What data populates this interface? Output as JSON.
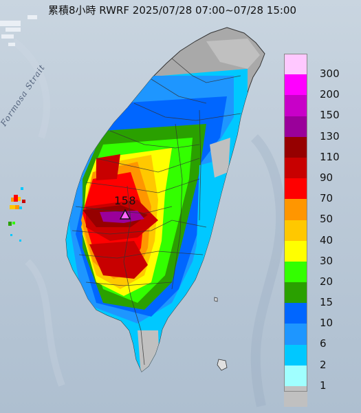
{
  "map": {
    "title": "累積8小時 RWRF 2025/07/28 07:00~07/28 15:00",
    "sea_label": "Formosa Strait",
    "max_value": "158",
    "land_color": "#a9a9a9",
    "ocean_color": "#bccad8"
  },
  "legend": {
    "items": [
      {
        "label": "300",
        "color": "#ffc8ff"
      },
      {
        "label": "200",
        "color": "#ff00ff"
      },
      {
        "label": "150",
        "color": "#c800c8"
      },
      {
        "label": "130",
        "color": "#9a009a"
      },
      {
        "label": "110",
        "color": "#960000"
      },
      {
        "label": "90",
        "color": "#c80000"
      },
      {
        "label": "70",
        "color": "#ff0000"
      },
      {
        "label": "50",
        "color": "#ff9600"
      },
      {
        "label": "40",
        "color": "#ffc800"
      },
      {
        "label": "30",
        "color": "#ffff00"
      },
      {
        "label": "20",
        "color": "#33ff00"
      },
      {
        "label": "15",
        "color": "#2aa000"
      },
      {
        "label": "10",
        "color": "#0066ff"
      },
      {
        "label": "6",
        "color": "#1e96ff"
      },
      {
        "label": "2",
        "color": "#00c8ff"
      },
      {
        "label": "1",
        "color": "#a0ffff"
      },
      {
        "label": "",
        "color": "#c0c0c0"
      }
    ]
  }
}
